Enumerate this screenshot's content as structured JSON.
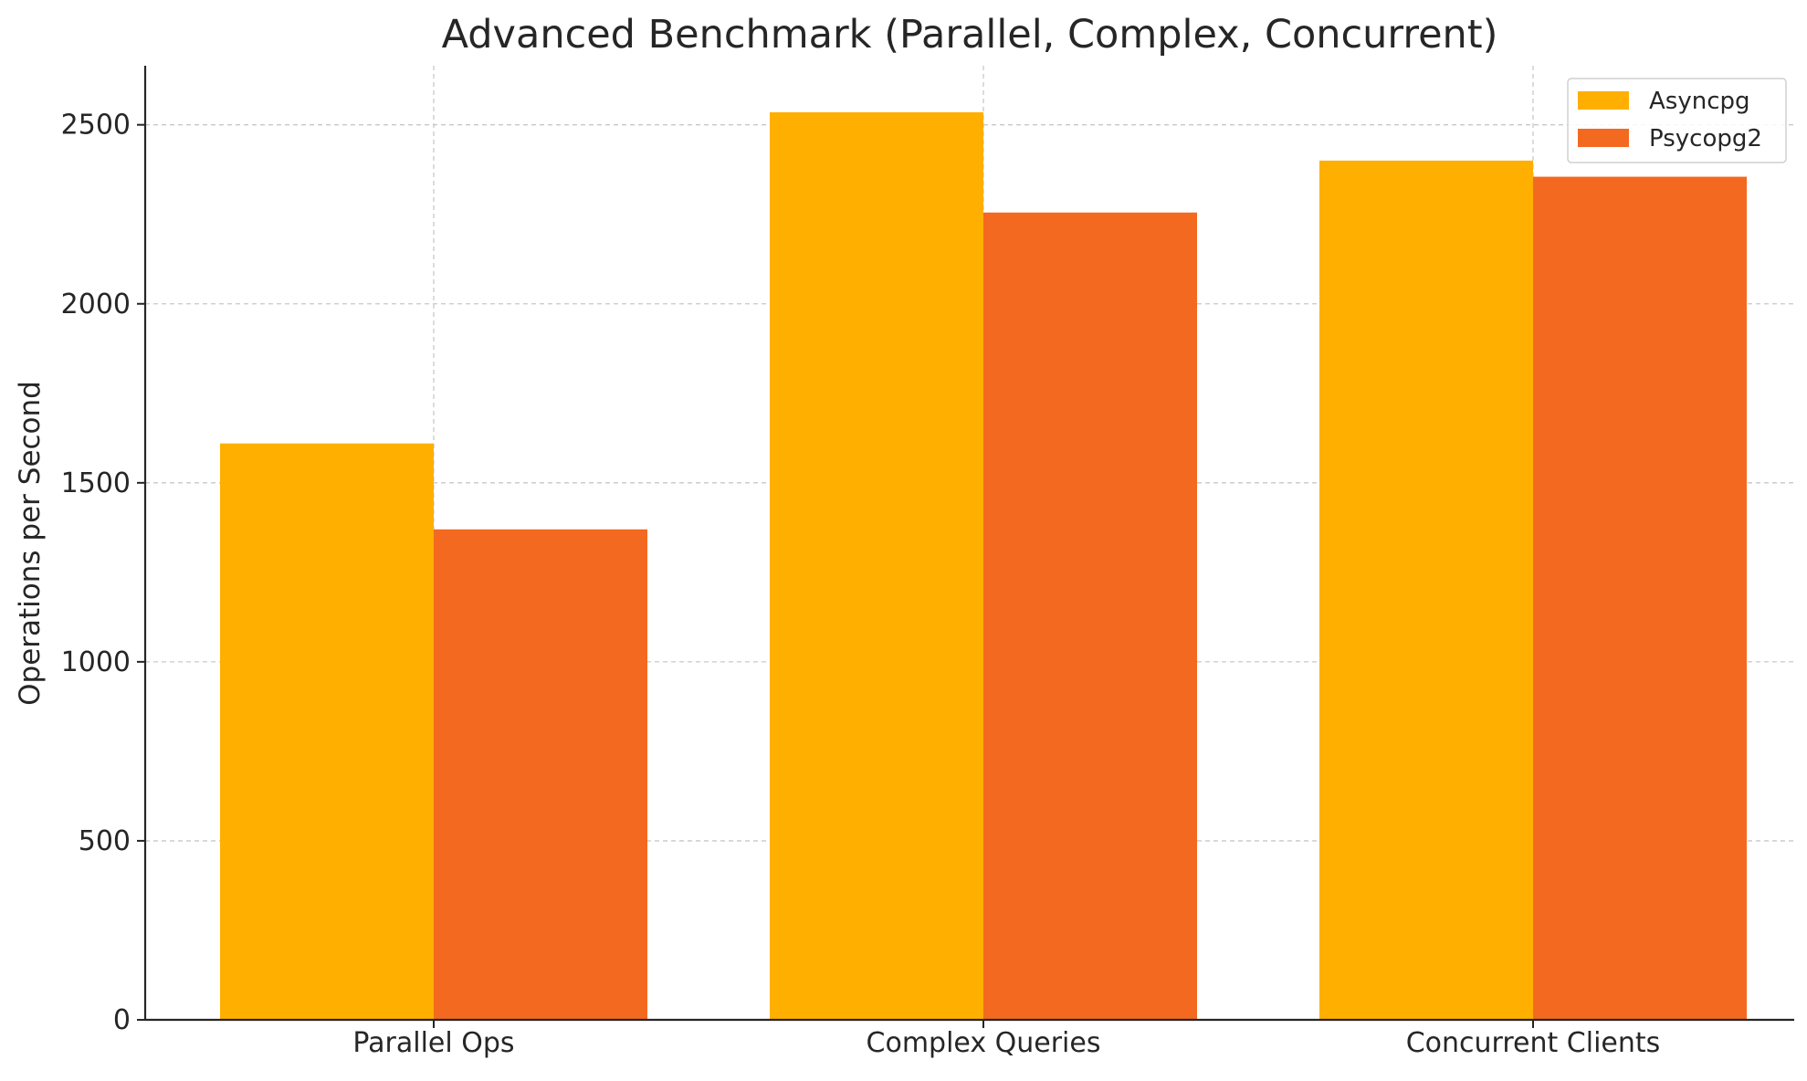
{
  "chart_data": {
    "type": "bar",
    "title": "Advanced Benchmark (Parallel, Complex, Concurrent)",
    "xlabel": "",
    "ylabel": "Operations per Second",
    "categories": [
      "Parallel Ops",
      "Complex Queries",
      "Concurrent Clients"
    ],
    "series": [
      {
        "name": "Asyncpg",
        "values": [
          1610,
          2535,
          2400
        ],
        "color": "#FFAF00"
      },
      {
        "name": "Psycopg2",
        "values": [
          1370,
          2255,
          2355
        ],
        "color": "#F46920"
      }
    ],
    "ylim": [
      0,
      2665
    ],
    "yticks": [
      0,
      500,
      1000,
      1500,
      2000,
      2500
    ],
    "grid": true,
    "legend_position": "top-right"
  }
}
